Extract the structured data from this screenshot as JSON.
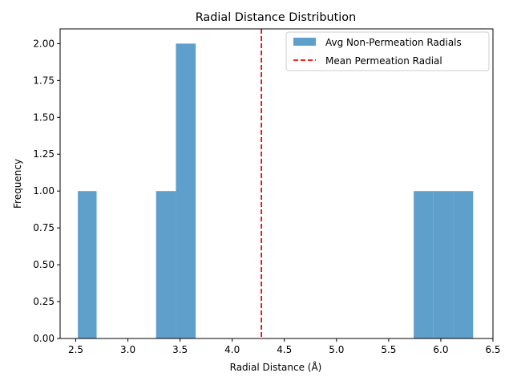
{
  "chart_data": {
    "type": "bar",
    "title": "Radial Distance Distribution",
    "xlabel": "Radial Distance (Å)",
    "ylabel": "Frequency",
    "xlim": [
      2.35,
      6.5
    ],
    "ylim": [
      0,
      2.1
    ],
    "xticks": [
      2.5,
      3.0,
      3.5,
      4.0,
      4.5,
      5.0,
      5.5,
      6.0,
      6.5
    ],
    "xtick_labels": [
      "2.5",
      "3.0",
      "3.5",
      "4.0",
      "4.5",
      "5.0",
      "5.5",
      "6.0",
      "6.5"
    ],
    "yticks": [
      0,
      0.25,
      0.5,
      0.75,
      1.0,
      1.25,
      1.5,
      1.75,
      2.0
    ],
    "ytick_labels": [
      "0.00",
      "0.25",
      "0.50",
      "0.75",
      "1.00",
      "1.25",
      "1.50",
      "1.75",
      "2.00"
    ],
    "grid": false,
    "legend_position": "top-right",
    "series": [
      {
        "name": "Avg Non-Permeation Radials",
        "color": "#5f9fcc",
        "bins": [
          {
            "x0": 2.52,
            "x1": 2.7,
            "count": 1
          },
          {
            "x0": 2.7,
            "x1": 2.89,
            "count": 0
          },
          {
            "x0": 2.89,
            "x1": 3.08,
            "count": 0
          },
          {
            "x0": 3.08,
            "x1": 3.27,
            "count": 0
          },
          {
            "x0": 3.27,
            "x1": 3.46,
            "count": 1
          },
          {
            "x0": 3.46,
            "x1": 3.65,
            "count": 2
          },
          {
            "x0": 3.65,
            "x1": 3.84,
            "count": 0
          },
          {
            "x0": 3.84,
            "x1": 4.03,
            "count": 0
          },
          {
            "x0": 4.03,
            "x1": 4.22,
            "count": 0
          },
          {
            "x0": 4.22,
            "x1": 4.41,
            "count": 0
          },
          {
            "x0": 4.41,
            "x1": 4.6,
            "count": 0
          },
          {
            "x0": 4.6,
            "x1": 4.79,
            "count": 0
          },
          {
            "x0": 4.79,
            "x1": 4.98,
            "count": 0
          },
          {
            "x0": 4.98,
            "x1": 5.17,
            "count": 0
          },
          {
            "x0": 5.17,
            "x1": 5.36,
            "count": 0
          },
          {
            "x0": 5.36,
            "x1": 5.55,
            "count": 0
          },
          {
            "x0": 5.55,
            "x1": 5.74,
            "count": 0
          },
          {
            "x0": 5.74,
            "x1": 5.93,
            "count": 1
          },
          {
            "x0": 5.93,
            "x1": 6.12,
            "count": 1
          },
          {
            "x0": 6.12,
            "x1": 6.31,
            "count": 1
          }
        ]
      },
      {
        "name": "Mean Permeation Radial",
        "color": "#ff0000",
        "type": "vline",
        "x": 4.28
      }
    ]
  }
}
